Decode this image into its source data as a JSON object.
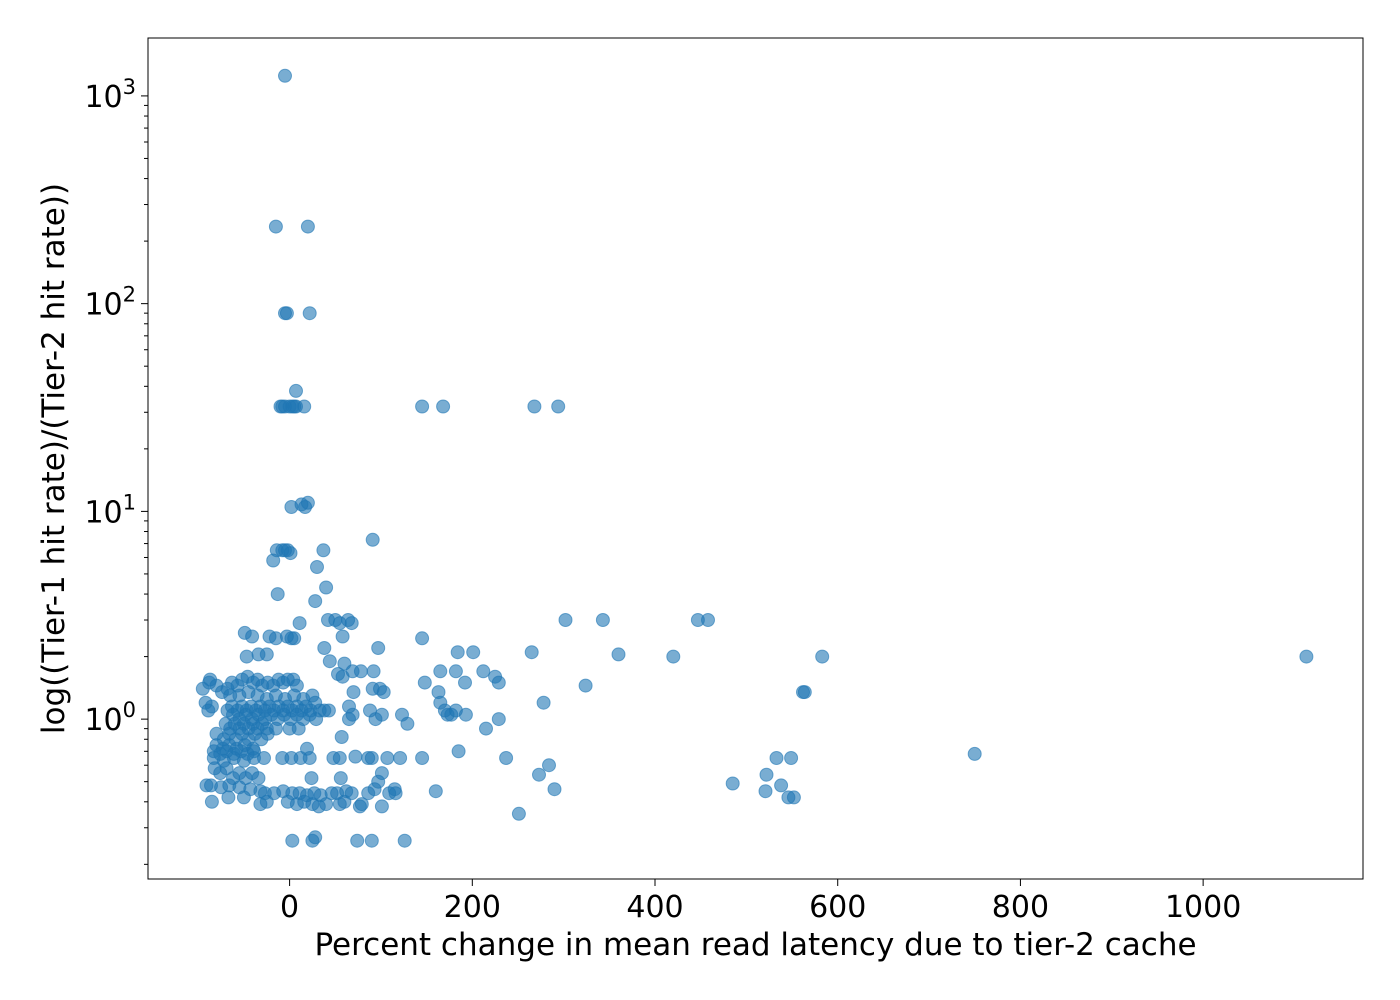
{
  "chart_data": {
    "type": "scatter",
    "title": "",
    "xlabel": "Percent change in mean read latency due to tier-2 cache",
    "ylabel": "log((Tier-1 hit rate)/(Tier-2 hit rate))",
    "xlim": [
      -155,
      1175
    ],
    "ylim": [
      0.17,
      1900
    ],
    "yscale": "log",
    "grid": false,
    "color": "#1f77b4",
    "x_ticks": [
      {
        "value": 0,
        "label": "0"
      },
      {
        "value": 200,
        "label": "200"
      },
      {
        "value": 400,
        "label": "400"
      },
      {
        "value": 600,
        "label": "600"
      },
      {
        "value": 800,
        "label": "800"
      },
      {
        "value": 1000,
        "label": "1000"
      }
    ],
    "y_ticks": [
      {
        "value": 1,
        "base": "10",
        "exp": "0"
      },
      {
        "value": 10,
        "base": "10",
        "exp": "1"
      },
      {
        "value": 100,
        "base": "10",
        "exp": "2"
      },
      {
        "value": 1000,
        "base": "10",
        "exp": "3"
      }
    ],
    "points": [
      [
        -5,
        1250
      ],
      [
        -15,
        235
      ],
      [
        20,
        235
      ],
      [
        -5,
        90
      ],
      [
        -3,
        90
      ],
      [
        22,
        90
      ],
      [
        -10,
        32
      ],
      [
        -8,
        32
      ],
      [
        -5,
        32
      ],
      [
        0,
        32
      ],
      [
        3,
        32
      ],
      [
        5,
        32
      ],
      [
        7,
        32
      ],
      [
        16,
        32
      ],
      [
        7,
        38
      ],
      [
        145,
        32
      ],
      [
        168,
        32
      ],
      [
        268,
        32
      ],
      [
        294,
        32
      ],
      [
        2,
        10.5
      ],
      [
        13,
        10.8
      ],
      [
        17,
        10.5
      ],
      [
        20,
        11
      ],
      [
        91,
        7.3
      ],
      [
        -14,
        6.5
      ],
      [
        -8,
        6.5
      ],
      [
        -5,
        6.5
      ],
      [
        -2,
        6.5
      ],
      [
        1,
        6.3
      ],
      [
        -18,
        5.8
      ],
      [
        30,
        5.4
      ],
      [
        37,
        6.5
      ],
      [
        40,
        4.3
      ],
      [
        -13,
        4
      ],
      [
        28,
        3.7
      ],
      [
        42,
        3
      ],
      [
        50,
        3
      ],
      [
        55,
        2.9
      ],
      [
        64,
        3
      ],
      [
        68,
        2.9
      ],
      [
        302,
        3
      ],
      [
        343,
        3
      ],
      [
        447,
        3
      ],
      [
        458,
        3
      ],
      [
        -49,
        2.6
      ],
      [
        -41,
        2.5
      ],
      [
        -22,
        2.5
      ],
      [
        -15,
        2.45
      ],
      [
        -3,
        2.5
      ],
      [
        2,
        2.45
      ],
      [
        5,
        2.45
      ],
      [
        11,
        2.9
      ],
      [
        58,
        2.5
      ],
      [
        145,
        2.45
      ],
      [
        38,
        2.2
      ],
      [
        97,
        2.2
      ],
      [
        -34,
        2.05
      ],
      [
        -25,
        2.05
      ],
      [
        -47,
        2
      ],
      [
        184,
        2.1
      ],
      [
        201,
        2.1
      ],
      [
        265,
        2.1
      ],
      [
        360,
        2.05
      ],
      [
        420,
        2
      ],
      [
        583,
        2
      ],
      [
        1113,
        2
      ],
      [
        44,
        1.9
      ],
      [
        60,
        1.85
      ],
      [
        53,
        1.65
      ],
      [
        58,
        1.6
      ],
      [
        69,
        1.7
      ],
      [
        78,
        1.7
      ],
      [
        92,
        1.7
      ],
      [
        165,
        1.7
      ],
      [
        182,
        1.7
      ],
      [
        212,
        1.7
      ],
      [
        225,
        1.6
      ],
      [
        148,
        1.5
      ],
      [
        192,
        1.5
      ],
      [
        229,
        1.5
      ],
      [
        324,
        1.45
      ],
      [
        -95,
        1.4
      ],
      [
        -88,
        1.5
      ],
      [
        -87,
        1.55
      ],
      [
        -80,
        1.45
      ],
      [
        -74,
        1.35
      ],
      [
        -68,
        1.4
      ],
      [
        -63,
        1.5
      ],
      [
        -57,
        1.45
      ],
      [
        -52,
        1.55
      ],
      [
        -46,
        1.6
      ],
      [
        -40,
        1.5
      ],
      [
        -35,
        1.55
      ],
      [
        -30,
        1.45
      ],
      [
        -24,
        1.5
      ],
      [
        -18,
        1.45
      ],
      [
        -12,
        1.55
      ],
      [
        -7,
        1.5
      ],
      [
        -2,
        1.55
      ],
      [
        4,
        1.55
      ],
      [
        8,
        1.45
      ],
      [
        -65,
        1.3
      ],
      [
        -55,
        1.3
      ],
      [
        -45,
        1.35
      ],
      [
        -35,
        1.3
      ],
      [
        -25,
        1.25
      ],
      [
        -15,
        1.3
      ],
      [
        -5,
        1.25
      ],
      [
        5,
        1.3
      ],
      [
        15,
        1.25
      ],
      [
        25,
        1.3
      ],
      [
        70,
        1.35
      ],
      [
        91,
        1.4
      ],
      [
        99,
        1.4
      ],
      [
        103,
        1.35
      ],
      [
        163,
        1.35
      ],
      [
        562,
        1.35
      ],
      [
        564,
        1.35
      ],
      [
        -92,
        1.2
      ],
      [
        -89,
        1.1
      ],
      [
        -85,
        1.15
      ],
      [
        -68,
        1.1
      ],
      [
        -63,
        1.15
      ],
      [
        -57,
        1.1
      ],
      [
        -52,
        1.15
      ],
      [
        -47,
        1.1
      ],
      [
        -42,
        1.15
      ],
      [
        -37,
        1.1
      ],
      [
        -32,
        1.15
      ],
      [
        -27,
        1.1
      ],
      [
        -22,
        1.15
      ],
      [
        -17,
        1.1
      ],
      [
        -12,
        1.15
      ],
      [
        -7,
        1.1
      ],
      [
        -2,
        1.15
      ],
      [
        3,
        1.1
      ],
      [
        8,
        1.15
      ],
      [
        13,
        1.1
      ],
      [
        18,
        1.15
      ],
      [
        23,
        1.1
      ],
      [
        28,
        1.2
      ],
      [
        33,
        1.1
      ],
      [
        38,
        1.1
      ],
      [
        43,
        1.1
      ],
      [
        -62,
        1.05
      ],
      [
        -55,
        1.0
      ],
      [
        -48,
        1.05
      ],
      [
        -41,
        1.0
      ],
      [
        -34,
        1.05
      ],
      [
        -27,
        1.0
      ],
      [
        -20,
        1.05
      ],
      [
        -13,
        1.0
      ],
      [
        -6,
        1.05
      ],
      [
        1,
        1.0
      ],
      [
        8,
        1.05
      ],
      [
        15,
        1.0
      ],
      [
        22,
        1.05
      ],
      [
        29,
        1.0
      ],
      [
        65,
        1.15
      ],
      [
        69,
        1.05
      ],
      [
        65,
        1.0
      ],
      [
        88,
        1.1
      ],
      [
        94,
        1.0
      ],
      [
        101,
        1.05
      ],
      [
        123,
        1.05
      ],
      [
        129,
        0.95
      ],
      [
        165,
        1.2
      ],
      [
        170,
        1.1
      ],
      [
        173,
        1.05
      ],
      [
        177,
        1.05
      ],
      [
        182,
        1.1
      ],
      [
        193,
        1.05
      ],
      [
        215,
        0.9
      ],
      [
        229,
        1.0
      ],
      [
        278,
        1.2
      ],
      [
        -70,
        0.95
      ],
      [
        -65,
        0.9
      ],
      [
        -60,
        0.95
      ],
      [
        -55,
        0.9
      ],
      [
        -50,
        0.95
      ],
      [
        -45,
        0.9
      ],
      [
        -40,
        0.95
      ],
      [
        -35,
        0.9
      ],
      [
        -30,
        0.95
      ],
      [
        -25,
        0.9
      ],
      [
        -15,
        0.9
      ],
      [
        0,
        0.9
      ],
      [
        10,
        0.9
      ],
      [
        -80,
        0.85
      ],
      [
        -72,
        0.8
      ],
      [
        -66,
        0.85
      ],
      [
        -59,
        0.8
      ],
      [
        -52,
        0.85
      ],
      [
        -45,
        0.8
      ],
      [
        -38,
        0.85
      ],
      [
        -31,
        0.8
      ],
      [
        -24,
        0.85
      ],
      [
        -80,
        0.75
      ],
      [
        -73,
        0.72
      ],
      [
        -66,
        0.75
      ],
      [
        -58,
        0.72
      ],
      [
        -49,
        0.75
      ],
      [
        -40,
        0.72
      ],
      [
        57,
        0.82
      ],
      [
        19,
        0.72
      ],
      [
        -83,
        0.7
      ],
      [
        -76,
        0.68
      ],
      [
        -69,
        0.7
      ],
      [
        -61,
        0.68
      ],
      [
        -53,
        0.7
      ],
      [
        -46,
        0.68
      ],
      [
        -39,
        0.7
      ],
      [
        -83,
        0.65
      ],
      [
        -72,
        0.63
      ],
      [
        -61,
        0.65
      ],
      [
        -50,
        0.63
      ],
      [
        -39,
        0.65
      ],
      [
        -28,
        0.65
      ],
      [
        -8,
        0.65
      ],
      [
        2,
        0.65
      ],
      [
        12,
        0.65
      ],
      [
        22,
        0.65
      ],
      [
        48,
        0.65
      ],
      [
        55,
        0.65
      ],
      [
        72,
        0.66
      ],
      [
        86,
        0.65
      ],
      [
        90,
        0.65
      ],
      [
        107,
        0.65
      ],
      [
        121,
        0.65
      ],
      [
        145,
        0.65
      ],
      [
        185,
        0.7
      ],
      [
        237,
        0.65
      ],
      [
        533,
        0.65
      ],
      [
        549,
        0.65
      ],
      [
        750,
        0.68
      ],
      [
        -82,
        0.58
      ],
      [
        -76,
        0.55
      ],
      [
        -69,
        0.58
      ],
      [
        -62,
        0.52
      ],
      [
        -55,
        0.55
      ],
      [
        -48,
        0.52
      ],
      [
        -41,
        0.55
      ],
      [
        -34,
        0.52
      ],
      [
        24,
        0.52
      ],
      [
        56,
        0.52
      ],
      [
        101,
        0.55
      ],
      [
        273,
        0.54
      ],
      [
        284,
        0.6
      ],
      [
        522,
        0.54
      ],
      [
        -91,
        0.48
      ],
      [
        -86,
        0.48
      ],
      [
        -75,
        0.47
      ],
      [
        -66,
        0.48
      ],
      [
        -55,
        0.47
      ],
      [
        -43,
        0.46
      ],
      [
        -32,
        0.45
      ],
      [
        -27,
        0.44
      ],
      [
        -17,
        0.44
      ],
      [
        -7,
        0.45
      ],
      [
        3,
        0.44
      ],
      [
        11,
        0.44
      ],
      [
        19,
        0.43
      ],
      [
        27,
        0.44
      ],
      [
        34,
        0.43
      ],
      [
        46,
        0.44
      ],
      [
        52,
        0.44
      ],
      [
        62,
        0.45
      ],
      [
        68,
        0.44
      ],
      [
        86,
        0.44
      ],
      [
        93,
        0.46
      ],
      [
        97,
        0.5
      ],
      [
        109,
        0.44
      ],
      [
        115,
        0.46
      ],
      [
        116,
        0.44
      ],
      [
        160,
        0.45
      ],
      [
        290,
        0.46
      ],
      [
        485,
        0.49
      ],
      [
        521,
        0.45
      ],
      [
        538,
        0.48
      ],
      [
        -85,
        0.4
      ],
      [
        -67,
        0.42
      ],
      [
        -50,
        0.42
      ],
      [
        -32,
        0.39
      ],
      [
        -25,
        0.4
      ],
      [
        -2,
        0.4
      ],
      [
        8,
        0.39
      ],
      [
        16,
        0.4
      ],
      [
        25,
        0.39
      ],
      [
        32,
        0.38
      ],
      [
        40,
        0.39
      ],
      [
        55,
        0.39
      ],
      [
        60,
        0.4
      ],
      [
        77,
        0.38
      ],
      [
        79,
        0.39
      ],
      [
        101,
        0.38
      ],
      [
        546,
        0.42
      ],
      [
        552,
        0.42
      ],
      [
        3,
        0.26
      ],
      [
        25,
        0.26
      ],
      [
        28,
        0.27
      ],
      [
        74,
        0.26
      ],
      [
        90,
        0.26
      ],
      [
        126,
        0.26
      ],
      [
        251,
        0.35
      ]
    ]
  }
}
